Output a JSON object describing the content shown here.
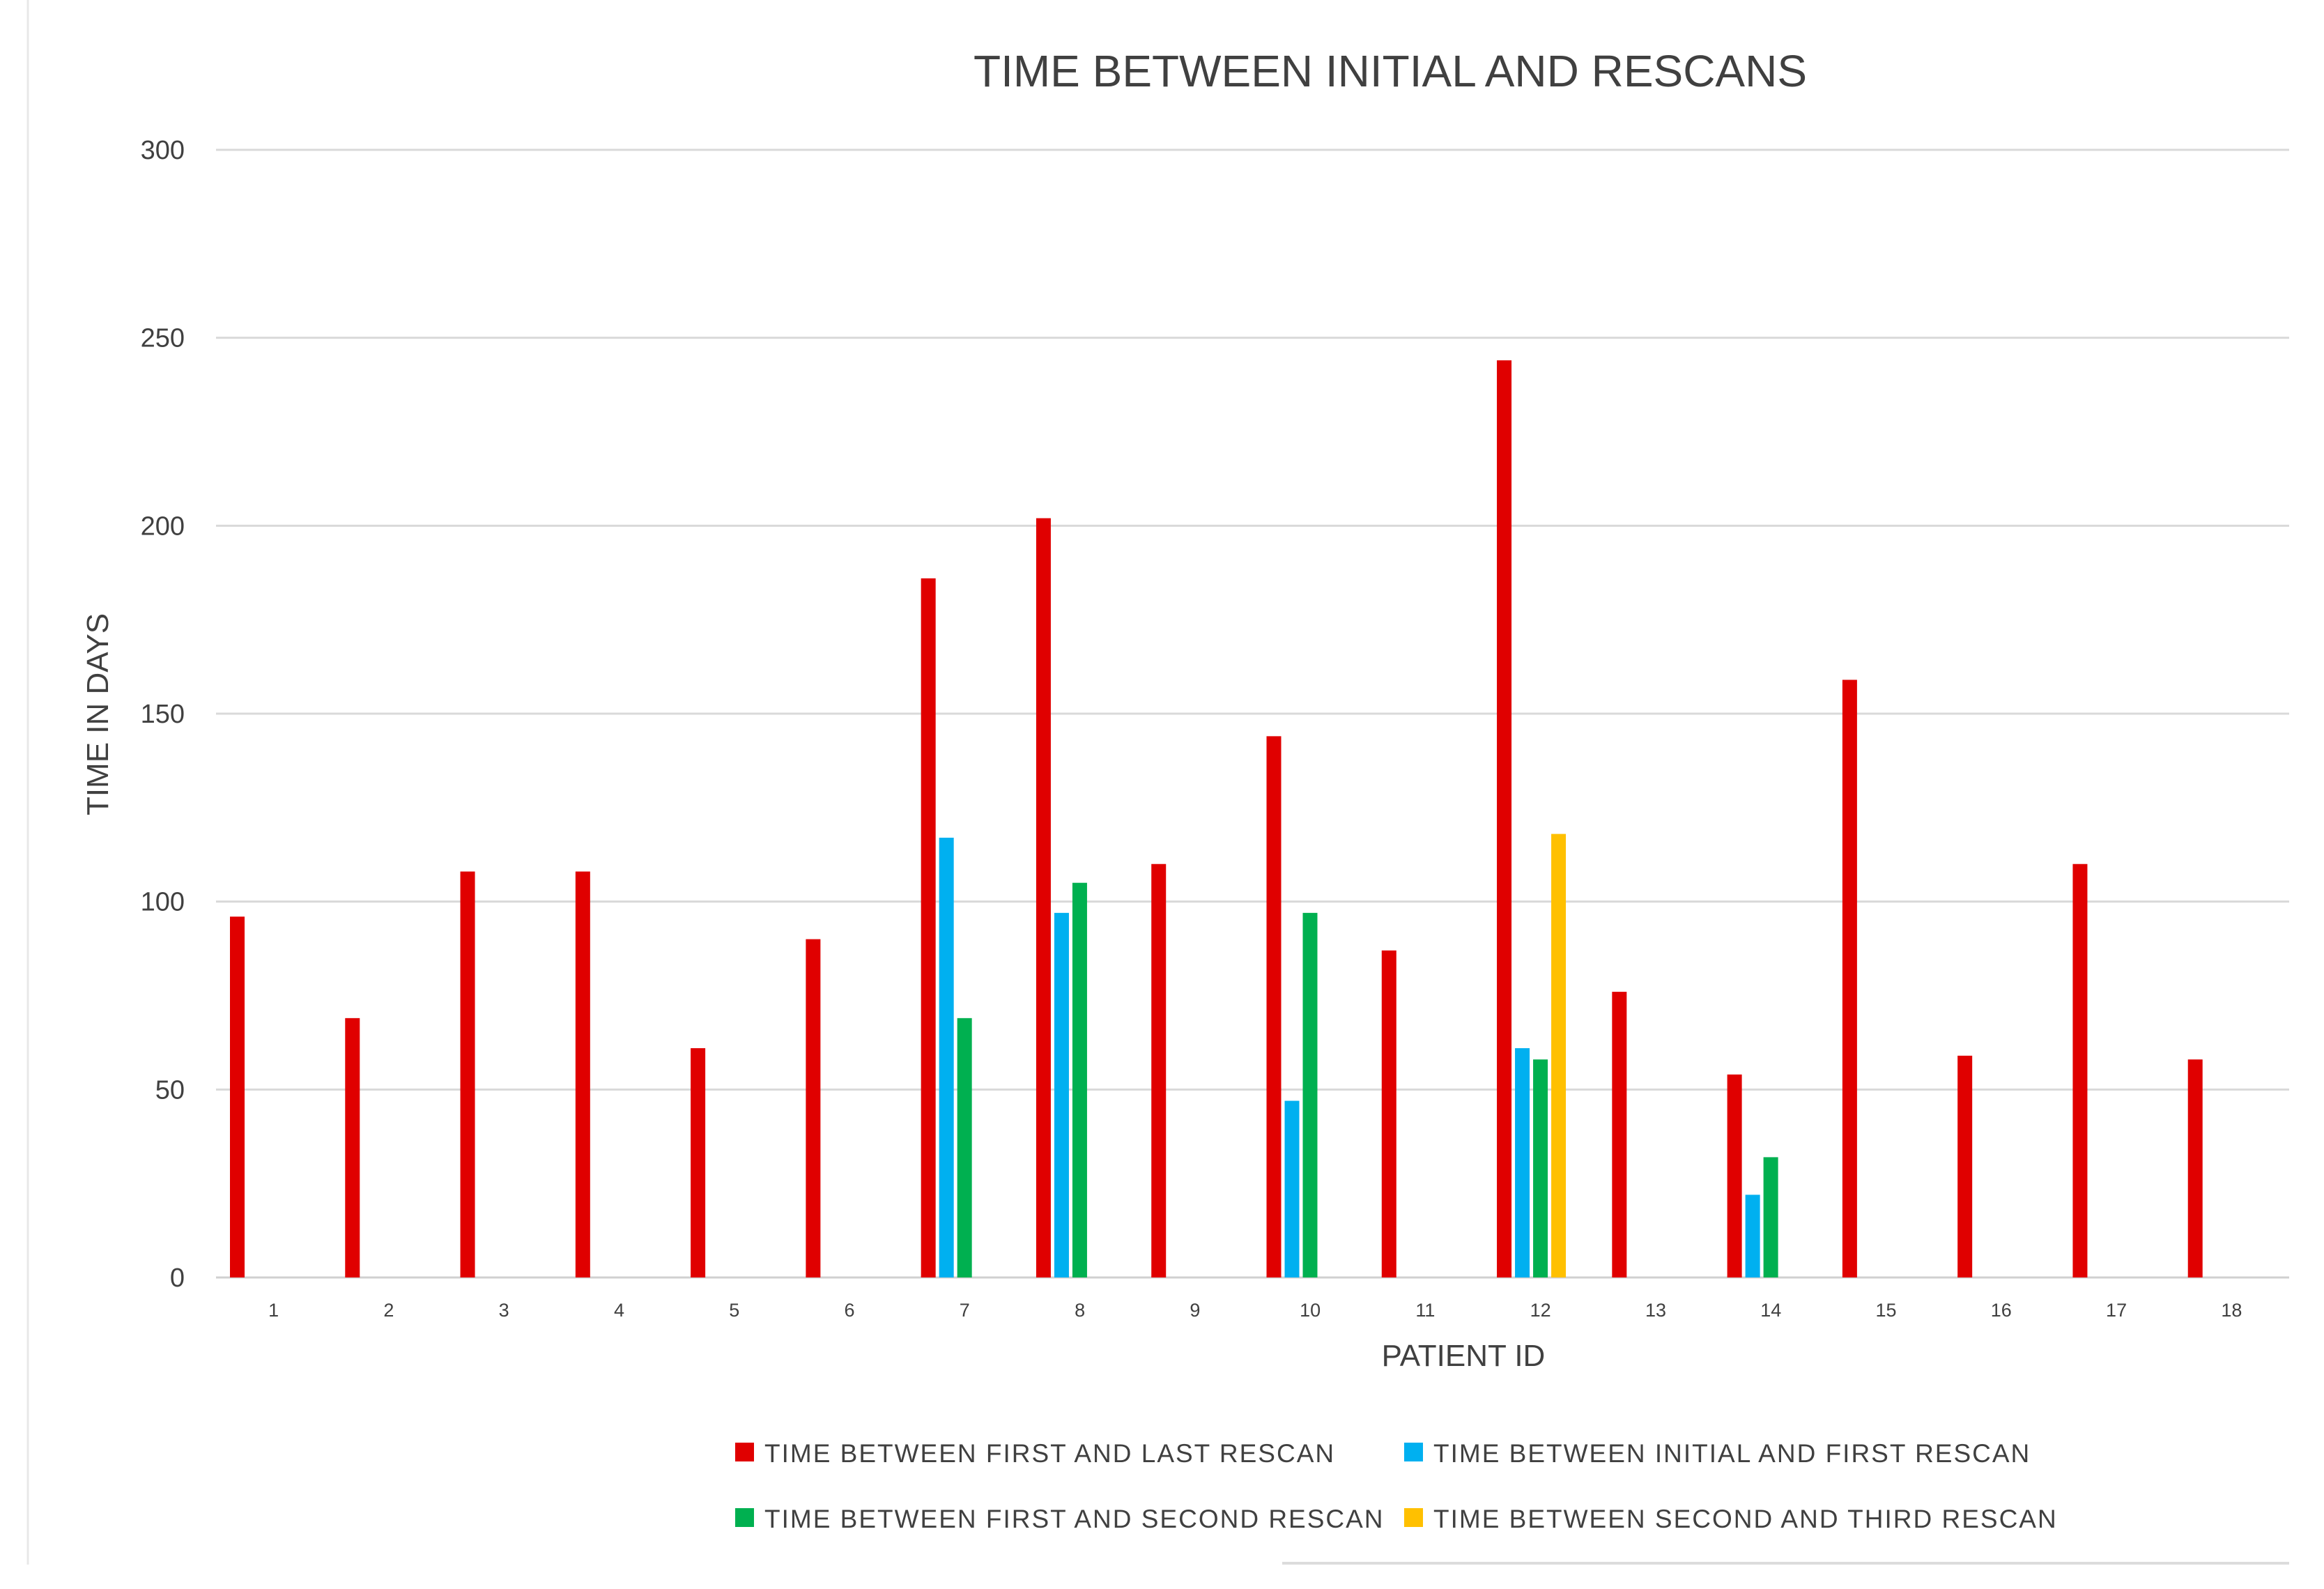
{
  "chart_data": {
    "type": "bar",
    "title": "TIME BETWEEN INITIAL AND RESCANS",
    "xlabel": "PATIENT ID",
    "ylabel": "TIME IN DAYS",
    "ylim": [
      0,
      300
    ],
    "yticks": [
      0,
      50,
      100,
      150,
      200,
      250,
      300
    ],
    "grid": true,
    "legend_position": "bottom",
    "categories": [
      "1",
      "2",
      "3",
      "4",
      "5",
      "6",
      "7",
      "8",
      "9",
      "10",
      "11",
      "12",
      "13",
      "14",
      "15",
      "16",
      "17",
      "18"
    ],
    "series": [
      {
        "name": "TIME BETWEEN FIRST AND LAST RESCAN",
        "color": "#E00000",
        "values": [
          96,
          69,
          108,
          108,
          61,
          90,
          186,
          202,
          110,
          144,
          87,
          244,
          76,
          54,
          159,
          59,
          110,
          58
        ]
      },
      {
        "name": "TIME BETWEEN INITIAL AND FIRST RESCAN",
        "color": "#00B0F0",
        "values": [
          null,
          null,
          null,
          null,
          null,
          null,
          117,
          97,
          null,
          47,
          null,
          61,
          null,
          22,
          null,
          null,
          null,
          null
        ]
      },
      {
        "name": "TIME BETWEEN FIRST AND SECOND RESCAN",
        "color": "#00B050",
        "values": [
          null,
          null,
          null,
          null,
          null,
          null,
          69,
          105,
          null,
          97,
          null,
          58,
          null,
          32,
          null,
          null,
          null,
          null
        ]
      },
      {
        "name": "TIME BETWEEN SECOND AND THIRD RESCAN",
        "color": "#FFC000",
        "values": [
          null,
          null,
          null,
          null,
          null,
          null,
          null,
          null,
          null,
          null,
          null,
          118,
          null,
          null,
          null,
          null,
          null,
          null
        ]
      }
    ]
  }
}
